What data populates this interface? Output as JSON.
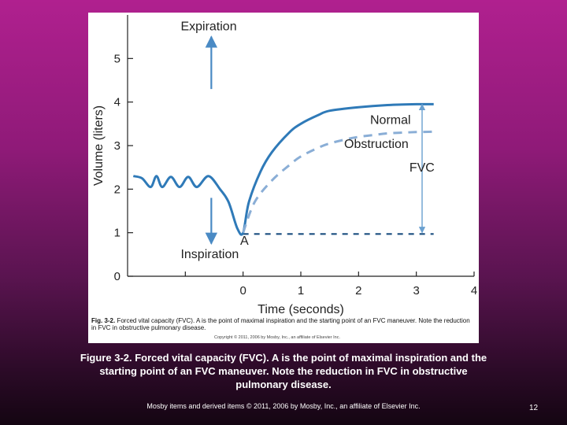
{
  "chart_data": {
    "type": "line",
    "xlabel": "Time (seconds)",
    "ylabel": "Volume (liters)",
    "xlim": [
      -2,
      4
    ],
    "ylim": [
      0,
      6
    ],
    "x_ticks": [
      0,
      1,
      2,
      3,
      4
    ],
    "y_ticks": [
      0,
      1,
      2,
      3,
      4,
      5
    ],
    "grid": false,
    "series": [
      {
        "name": "Normal",
        "style": "solid",
        "color": "#2f7ab8",
        "x": [
          -1.9,
          -1.75,
          -1.6,
          -1.5,
          -1.4,
          -1.25,
          -1.1,
          -0.95,
          -0.8,
          -0.6,
          -0.4,
          -0.25,
          -0.1,
          0,
          0.1,
          0.3,
          0.5,
          0.8,
          1.0,
          1.3,
          1.5,
          2.0,
          2.5,
          3.0,
          3.3
        ],
        "y": [
          2.3,
          2.25,
          2.05,
          2.3,
          2.05,
          2.28,
          2.05,
          2.28,
          2.05,
          2.3,
          2.0,
          1.7,
          1.1,
          1.0,
          1.7,
          2.4,
          2.85,
          3.3,
          3.5,
          3.7,
          3.8,
          3.88,
          3.93,
          3.95,
          3.95
        ]
      },
      {
        "name": "Obstruction",
        "style": "dashed",
        "color": "#8aaed6",
        "x": [
          0,
          0.2,
          0.5,
          0.8,
          1.0,
          1.3,
          1.5,
          1.8,
          2.0,
          2.3,
          2.5,
          2.8,
          3.0,
          3.3
        ],
        "y": [
          1.0,
          1.7,
          2.2,
          2.55,
          2.75,
          2.95,
          3.05,
          3.15,
          3.2,
          3.25,
          3.28,
          3.3,
          3.31,
          3.32
        ]
      }
    ],
    "reference_line": {
      "y": 0.97,
      "x_start": 0,
      "x_end": 3.3,
      "style": "dashed",
      "color": "#1b4f80"
    },
    "annotations": {
      "expiration": "Expiration",
      "inspiration": "Inspiration",
      "normal": "Normal",
      "obstruction": "Obstruction",
      "fvc": "FVC",
      "point_a": "A"
    },
    "arrows": {
      "expiration": {
        "x": -0.55,
        "y_from": 4.3,
        "y_to": 5.5
      },
      "inspiration": {
        "x": -0.55,
        "y_from": 1.8,
        "y_to": 0.75
      },
      "fvc": {
        "x": 3.1,
        "y_from": 1.0,
        "y_to": 3.95
      }
    },
    "caption": {
      "label": "Fig. 3-2.",
      "text": "Forced vital capacity (FVC). A is the point of maximal inspiration and the starting point of an FVC maneuver. Note the reduction in FVC in obstructive pulmonary disease."
    },
    "inner_credit": "Copyright © 2011, 2006 by Mosby, Inc., an affiliate of Elsevier Inc."
  },
  "slide": {
    "caption": "Figure 3-2. Forced vital capacity (FVC). A is the point of maximal inspiration and the starting point of an FVC maneuver. Note the reduction in FVC in obstructive pulmonary disease.",
    "footer": "Mosby items and derived items © 2011, 2006 by Mosby, Inc., an affiliate of Elsevier Inc.",
    "page_number": "12"
  }
}
